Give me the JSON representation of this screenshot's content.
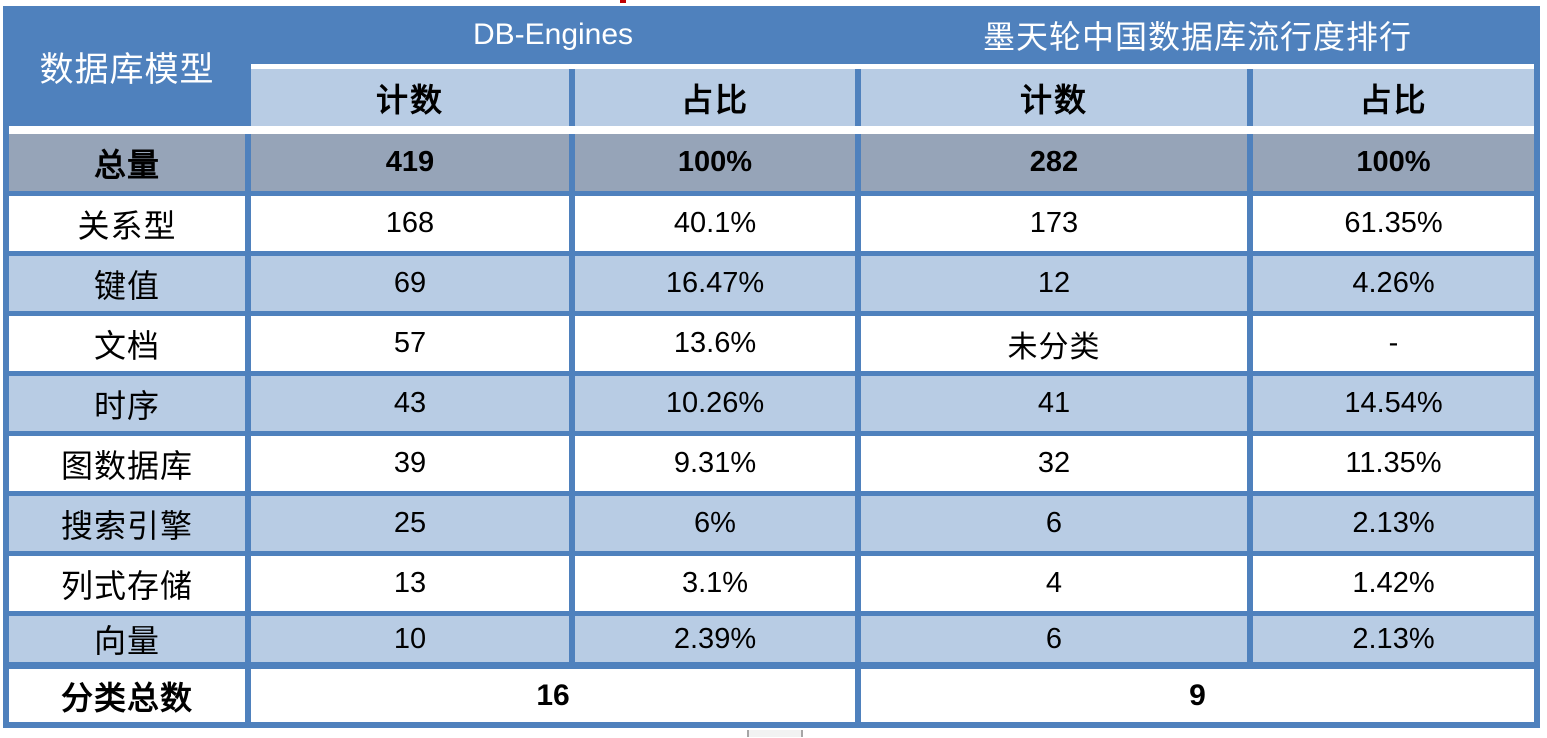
{
  "chart_data": {
    "type": "table",
    "corner_header": "数据库模型",
    "column_groups": [
      {
        "label": "DB-Engines",
        "subcolumns": [
          "计数",
          "占比"
        ]
      },
      {
        "label": "墨天轮中国数据库流行度排行",
        "subcolumns": [
          "计数",
          "占比"
        ]
      }
    ],
    "total_row": {
      "label": "总量",
      "values": [
        "419",
        "100%",
        "282",
        "100%"
      ]
    },
    "rows": [
      {
        "label": "关系型",
        "values": [
          "168",
          "40.1%",
          "173",
          "61.35%"
        ]
      },
      {
        "label": "键值",
        "values": [
          "69",
          "16.47%",
          "12",
          "4.26%"
        ]
      },
      {
        "label": "文档",
        "values": [
          "57",
          "13.6%",
          "未分类",
          "-"
        ]
      },
      {
        "label": "时序",
        "values": [
          "43",
          "10.26%",
          "41",
          "14.54%"
        ]
      },
      {
        "label": "图数据库",
        "values": [
          "39",
          "9.31%",
          "32",
          "11.35%"
        ]
      },
      {
        "label": "搜索引擎",
        "values": [
          "25",
          "6%",
          "6",
          "2.13%"
        ]
      },
      {
        "label": "列式存储",
        "values": [
          "13",
          "3.1%",
          "4",
          "1.42%"
        ]
      },
      {
        "label": "向量",
        "values": [
          "10",
          "2.39%",
          "6",
          "2.13%"
        ]
      }
    ],
    "footer_row": {
      "label": "分类总数",
      "values": [
        "16",
        "9"
      ]
    }
  },
  "colors": {
    "header_blue": "#4F81BD",
    "border_blue": "#4F81BD",
    "subheader_bg": "#B8CCE4",
    "total_row_bg": "#96A4B8",
    "alt_row_bg": "#B8CCE4",
    "row_bg": "#FFFFFF",
    "header_text": "#FFFFFF",
    "body_text": "#000000"
  }
}
